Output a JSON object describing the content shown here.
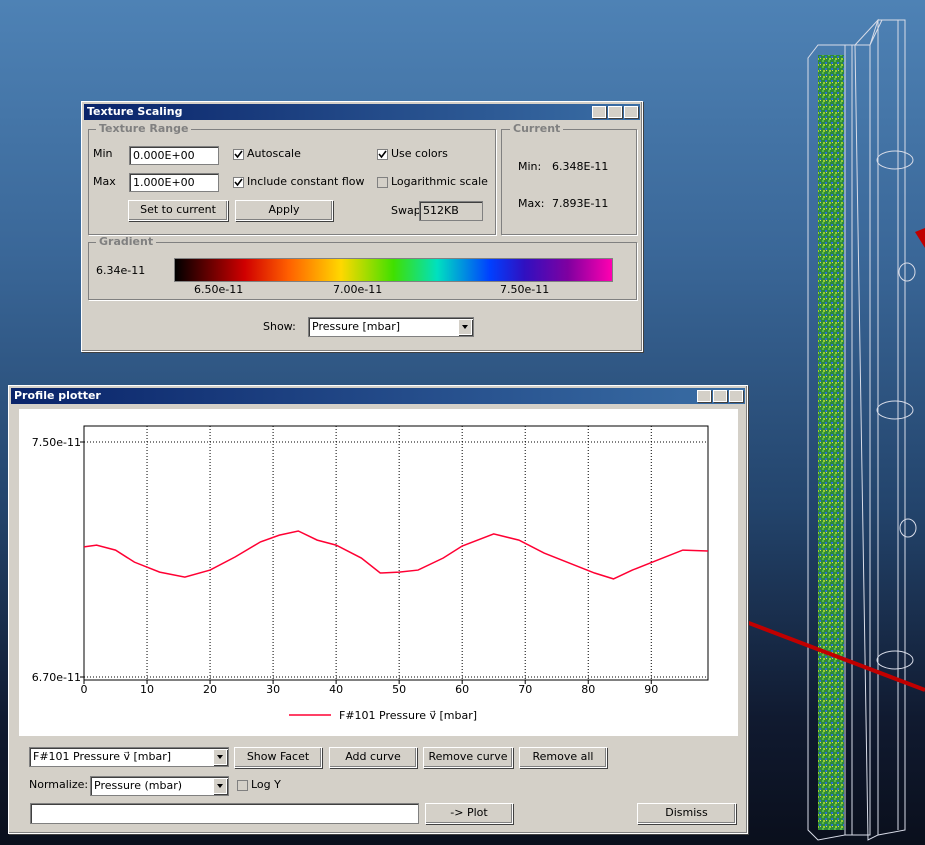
{
  "texture_scaling": {
    "title": "Texture Scaling",
    "texture_range_label": "Texture Range",
    "min_label": "Min",
    "min_value": "0.000E+00",
    "max_label": "Max",
    "max_value": "1.000E+00",
    "autoscale": "Autoscale",
    "include_constant_flow": "Include constant flow",
    "use_colors": "Use colors",
    "logarithmic_scale": "Logarithmic scale",
    "set_to_current": "Set to current",
    "apply": "Apply",
    "swap_label": "Swap",
    "swap_value": "512KB",
    "current_label": "Current",
    "current_min_label": "Min:",
    "current_min": "6.348E-11",
    "current_max_label": "Max:",
    "current_max": "7.893E-11",
    "gradient_label": "Gradient",
    "gradient_min": "6.34e-11",
    "gradient_ticks": [
      "6.50e-11",
      "7.00e-11",
      "7.50e-11"
    ],
    "show_label": "Show:",
    "show_value": "Pressure [mbar]"
  },
  "profile_plotter": {
    "title": "Profile plotter",
    "chart_data": {
      "type": "line",
      "x": [
        0,
        2,
        5,
        8,
        12,
        16,
        20,
        24,
        28,
        31,
        34,
        37,
        40,
        44,
        47,
        50,
        53,
        57,
        60,
        65,
        69,
        73,
        77,
        81,
        84,
        87,
        91,
        95,
        99
      ],
      "series": [
        {
          "name": "F#101 Pressure v⃗ [mbar]",
          "color": "#ff0033",
          "values": [
            7.143e-11,
            7.149e-11,
            7.132e-11,
            7.091e-11,
            7.057e-11,
            7.04e-11,
            7.064e-11,
            7.109e-11,
            7.16e-11,
            7.183e-11,
            7.197e-11,
            7.166e-11,
            7.149e-11,
            7.105e-11,
            7.054e-11,
            7.057e-11,
            7.064e-11,
            7.105e-11,
            7.146e-11,
            7.187e-11,
            7.166e-11,
            7.122e-11,
            7.088e-11,
            7.054e-11,
            7.034e-11,
            7.064e-11,
            7.098e-11,
            7.132e-11,
            7.129e-11
          ]
        }
      ],
      "xlim": [
        0,
        99
      ],
      "xticks": [
        0,
        10,
        20,
        30,
        40,
        50,
        60,
        70,
        80,
        90
      ],
      "ylim": [
        6.7e-11,
        7.5e-11
      ],
      "yticks": [
        {
          "value": 6.7e-11,
          "label": "6.70e-11"
        },
        {
          "value": 7.5e-11,
          "label": "7.50e-11"
        }
      ],
      "grid": true
    },
    "curve_select": "F#101 Pressure v⃗ [mbar]",
    "show_facet": "Show Facet",
    "add_curve": "Add curve",
    "remove_curve": "Remove curve",
    "remove_all": "Remove all",
    "normalize_label": "Normalize:",
    "normalize_value": "Pressure (mbar)",
    "log_y": "Log Y",
    "plot": "-> Plot",
    "dismiss": "Dismiss"
  }
}
